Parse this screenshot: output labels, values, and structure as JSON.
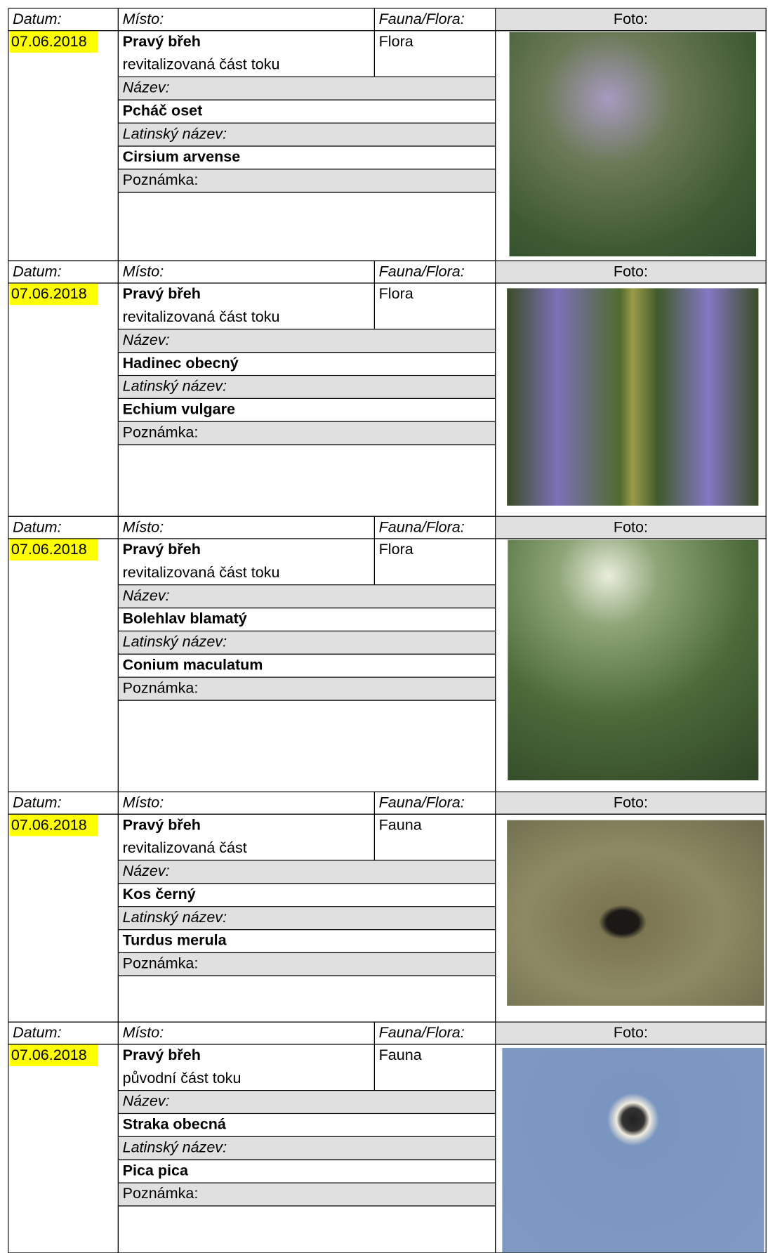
{
  "labels": {
    "date": "Datum:",
    "place": "Místo:",
    "type": "Fauna/Flora:",
    "photo": "Foto:",
    "name": "Název:",
    "latin": "Latinský název:",
    "note": "Poznámka:"
  },
  "records": [
    {
      "date": "07.06.2018",
      "place": "Pravý břeh",
      "place_detail": "revitalizovaná část toku",
      "type": "Flora",
      "name": "Pcháč oset",
      "latin": "Cirsium arvense"
    },
    {
      "date": "07.06.2018",
      "place": "Pravý břeh",
      "place_detail": "revitalizovaná část toku",
      "type": "Flora",
      "name": "Hadinec obecný",
      "latin": "Echium vulgare"
    },
    {
      "date": "07.06.2018",
      "place": "Pravý břeh",
      "place_detail": "revitalizovaná část toku",
      "type": "Flora",
      "name": "Bolehlav blamatý",
      "latin": "Conium maculatum"
    },
    {
      "date": "07.06.2018",
      "place": "Pravý břeh",
      "place_detail": "revitalizovaná část",
      "type": "Fauna",
      "name": "Kos černý",
      "latin": "Turdus merula"
    },
    {
      "date": "07.06.2018",
      "place": "Pravý břeh",
      "place_detail": "původní část toku",
      "type": "Fauna",
      "name": "Straka obecná",
      "latin": "Pica pica"
    }
  ]
}
